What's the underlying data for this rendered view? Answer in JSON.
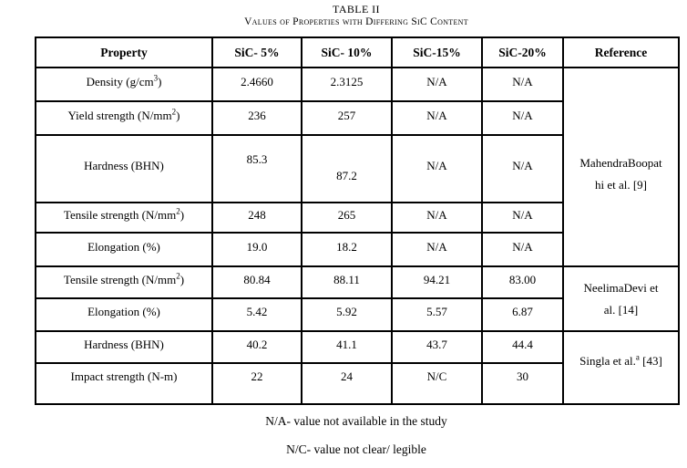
{
  "title": "TABLE II",
  "subtitle": "Values of Properties with Differing SiC Content",
  "table": {
    "headers": [
      "Property",
      "SiC- 5%",
      "SiC- 10%",
      "SiC-15%",
      "SiC-20%",
      "Reference"
    ],
    "rows": [
      {
        "property": [
          "Density (g/cm",
          {
            "sup": "3"
          },
          ")"
        ],
        "values": [
          "2.4660",
          "2.3125",
          "N/A",
          "N/A"
        ]
      },
      {
        "property": [
          "Yield strength (N/mm",
          {
            "sup": "2"
          },
          ")"
        ],
        "values": [
          "236",
          "257",
          "N/A",
          "N/A"
        ]
      },
      {
        "property": [
          "Hardness (BHN)"
        ],
        "values": [
          "85.3",
          "87.2",
          "N/A",
          "N/A"
        ]
      },
      {
        "property": [
          "Tensile strength (N/mm",
          {
            "sup": "2"
          },
          ")"
        ],
        "values": [
          "248",
          "265",
          "N/A",
          "N/A"
        ]
      },
      {
        "property": [
          "Elongation (%)"
        ],
        "values": [
          "19.0",
          "18.2",
          "N/A",
          "N/A"
        ]
      },
      {
        "property": [
          "Tensile strength (N/mm",
          {
            "sup": "2"
          },
          ")"
        ],
        "values": [
          "80.84",
          "88.11",
          "94.21",
          "83.00"
        ]
      },
      {
        "property": [
          "Elongation (%)"
        ],
        "values": [
          "5.42",
          "5.92",
          "5.57",
          "6.87"
        ]
      },
      {
        "property": [
          "Hardness (BHN)"
        ],
        "values": [
          "40.2",
          "41.1",
          "43.7",
          "44.4"
        ]
      },
      {
        "property": [
          "Impact strength (N-m)"
        ],
        "values": [
          "22",
          "24",
          "N/C",
          "30"
        ]
      }
    ],
    "references": [
      {
        "at_row": 0,
        "rowspan": 5,
        "segments": [
          "MahendraBoopat",
          {
            "br": true
          },
          "hi et al. [9]"
        ]
      },
      {
        "at_row": 5,
        "rowspan": 2,
        "segments": [
          "NeelimaDevi et",
          {
            "br": true
          },
          "al. [14]"
        ]
      },
      {
        "at_row": 7,
        "rowspan": 2,
        "segments": [
          "Singla et al.",
          {
            "sup": "a"
          },
          " [43]"
        ]
      }
    ]
  },
  "footnotes": [
    "N/A- value not available in the study",
    "N/C- value not clear/ legible"
  ]
}
